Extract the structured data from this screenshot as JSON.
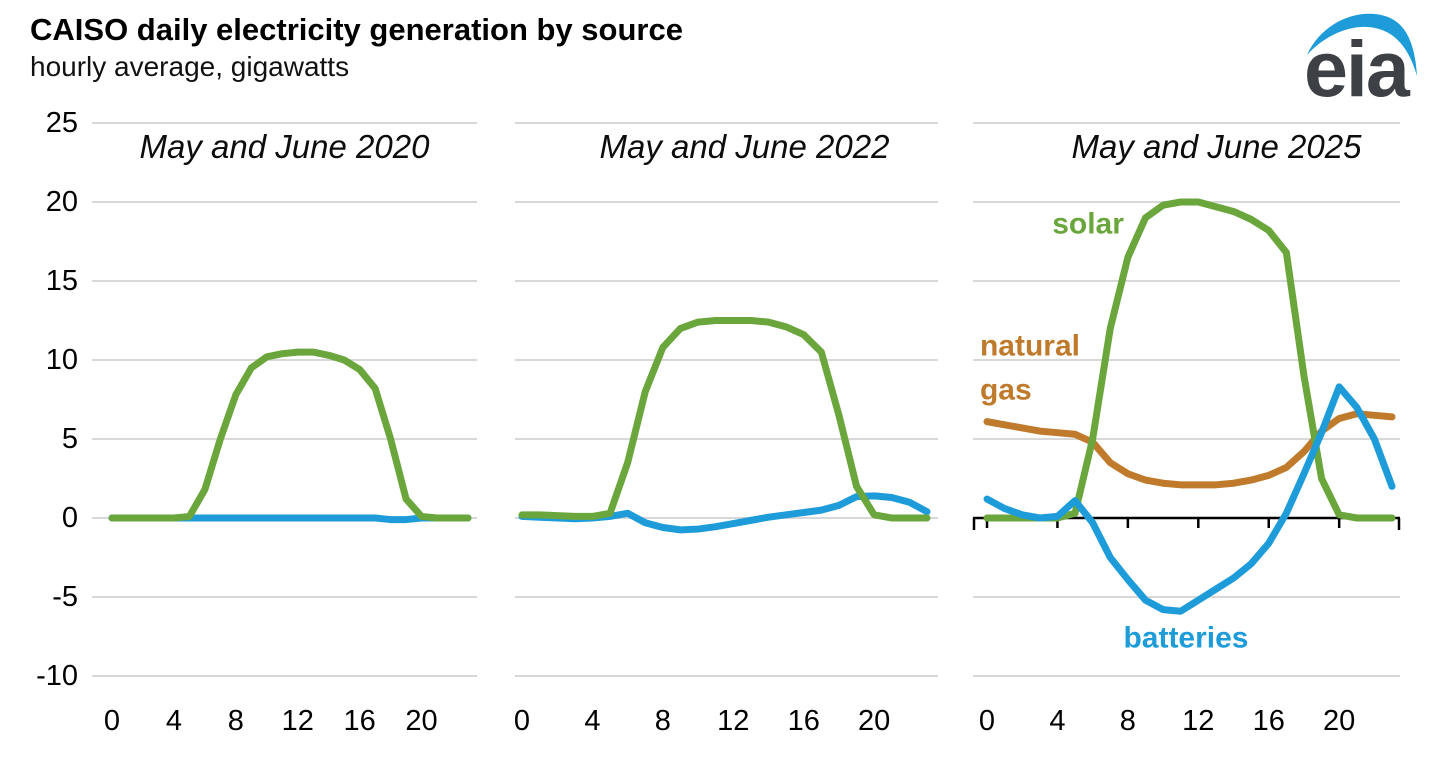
{
  "header": {
    "title": "CAISO daily electricity generation by source",
    "subtitle": "hourly average, gigawatts",
    "logo_text": "eia"
  },
  "colors": {
    "solar": "#6aa63c",
    "natural_gas": "#c07a2b",
    "batteries": "#1e9cd9",
    "gridline": "#d8d8d8",
    "zero_axis": "#000000",
    "logo_blue": "#1e9cd9",
    "logo_gray": "#3d4145"
  },
  "chart_data": {
    "type": "line",
    "title": "CAISO daily electricity generation by source",
    "subtitle": "hourly average, gigawatts",
    "units": "gigawatts",
    "x": [
      0,
      1,
      2,
      3,
      4,
      5,
      6,
      7,
      8,
      9,
      10,
      11,
      12,
      13,
      14,
      15,
      16,
      17,
      18,
      19,
      20,
      21,
      22,
      23
    ],
    "xticks": [
      0,
      4,
      8,
      12,
      16,
      20
    ],
    "ylim": [
      -10,
      25
    ],
    "yticks": [
      {
        "label": "25",
        "value": 25
      },
      {
        "label": "20",
        "value": 20
      },
      {
        "label": "15",
        "value": 15
      },
      {
        "label": "10",
        "value": 10
      },
      {
        "label": "5",
        "value": 5
      },
      {
        "label": "0",
        "value": 0
      },
      {
        "label": "-5",
        "value": -5
      },
      {
        "label": "-10",
        "value": -10
      }
    ],
    "grid": "horizontal",
    "legend_position": "inline-labels-third-panel",
    "panels": [
      {
        "title": "May and June 2020",
        "zero_axis": false,
        "series": [
          {
            "name": "batteries",
            "color": "#1e9cd9",
            "values": [
              0,
              0,
              0,
              0,
              0,
              0,
              0,
              0,
              0,
              0,
              0,
              0,
              0,
              0,
              0,
              0,
              0,
              0,
              -0.1,
              -0.1,
              0,
              0,
              0,
              0
            ]
          },
          {
            "name": "solar",
            "color": "#6aa63c",
            "values": [
              0,
              0,
              0,
              0,
              0,
              0.1,
              1.8,
              5,
              7.8,
              9.5,
              10.2,
              10.4,
              10.5,
              10.5,
              10.3,
              10,
              9.4,
              8.2,
              5,
              1.2,
              0.1,
              0,
              0,
              0
            ]
          }
        ],
        "labels": []
      },
      {
        "title": "May and June 2022",
        "zero_axis": false,
        "series": [
          {
            "name": "batteries",
            "color": "#1e9cd9",
            "values": [
              0.1,
              0.05,
              0,
              -0.05,
              0,
              0.1,
              0.3,
              -0.3,
              -0.6,
              -0.75,
              -0.7,
              -0.55,
              -0.35,
              -0.15,
              0.05,
              0.2,
              0.35,
              0.5,
              0.8,
              1.35,
              1.4,
              1.3,
              1,
              0.4
            ]
          },
          {
            "name": "solar",
            "color": "#6aa63c",
            "values": [
              0.2,
              0.2,
              0.15,
              0.1,
              0.1,
              0.3,
              3.5,
              8,
              10.8,
              12,
              12.4,
              12.5,
              12.5,
              12.5,
              12.4,
              12.1,
              11.6,
              10.5,
              6.5,
              2,
              0.2,
              0,
              0,
              0
            ]
          }
        ],
        "labels": []
      },
      {
        "title": "May and June 2025",
        "zero_axis": true,
        "series": [
          {
            "name": "natural gas",
            "color": "#c07a2b",
            "values": [
              6.1,
              5.9,
              5.7,
              5.5,
              5.4,
              5.3,
              4.8,
              3.5,
              2.8,
              2.4,
              2.2,
              2.1,
              2.1,
              2.1,
              2.2,
              2.4,
              2.7,
              3.2,
              4.2,
              5.5,
              6.3,
              6.6,
              6.5,
              6.4
            ]
          },
          {
            "name": "solar",
            "color": "#6aa63c",
            "values": [
              0,
              0,
              0,
              0,
              0,
              0.3,
              5,
              12,
              16.5,
              19,
              19.8,
              20,
              20,
              19.7,
              19.4,
              18.9,
              18.2,
              16.8,
              9,
              2.5,
              0.2,
              0,
              0,
              0
            ]
          },
          {
            "name": "batteries",
            "color": "#1e9cd9",
            "values": [
              1.2,
              0.6,
              0.2,
              0,
              0.1,
              1.1,
              -0.3,
              -2.5,
              -3.9,
              -5.2,
              -5.8,
              -5.9,
              -5.2,
              -4.5,
              -3.8,
              -2.9,
              -1.6,
              0.3,
              2.8,
              5.4,
              8.3,
              7,
              5,
              2
            ]
          }
        ],
        "labels": [
          {
            "name": "solar",
            "text": "solar",
            "x": 5.74,
            "y": 18.0,
            "color": "#6aa63c",
            "anchor": "middle"
          },
          {
            "name": "natural-gas",
            "lines": [
              "natural",
              "gas"
            ],
            "x": -0.4,
            "y": 10.3,
            "line_dy": 44,
            "color": "#c07a2b",
            "anchor": "start"
          },
          {
            "name": "batteries",
            "text": "batteries",
            "x": 11.3,
            "y": -8.2,
            "color": "#1e9cd9",
            "anchor": "middle"
          }
        ]
      }
    ]
  }
}
